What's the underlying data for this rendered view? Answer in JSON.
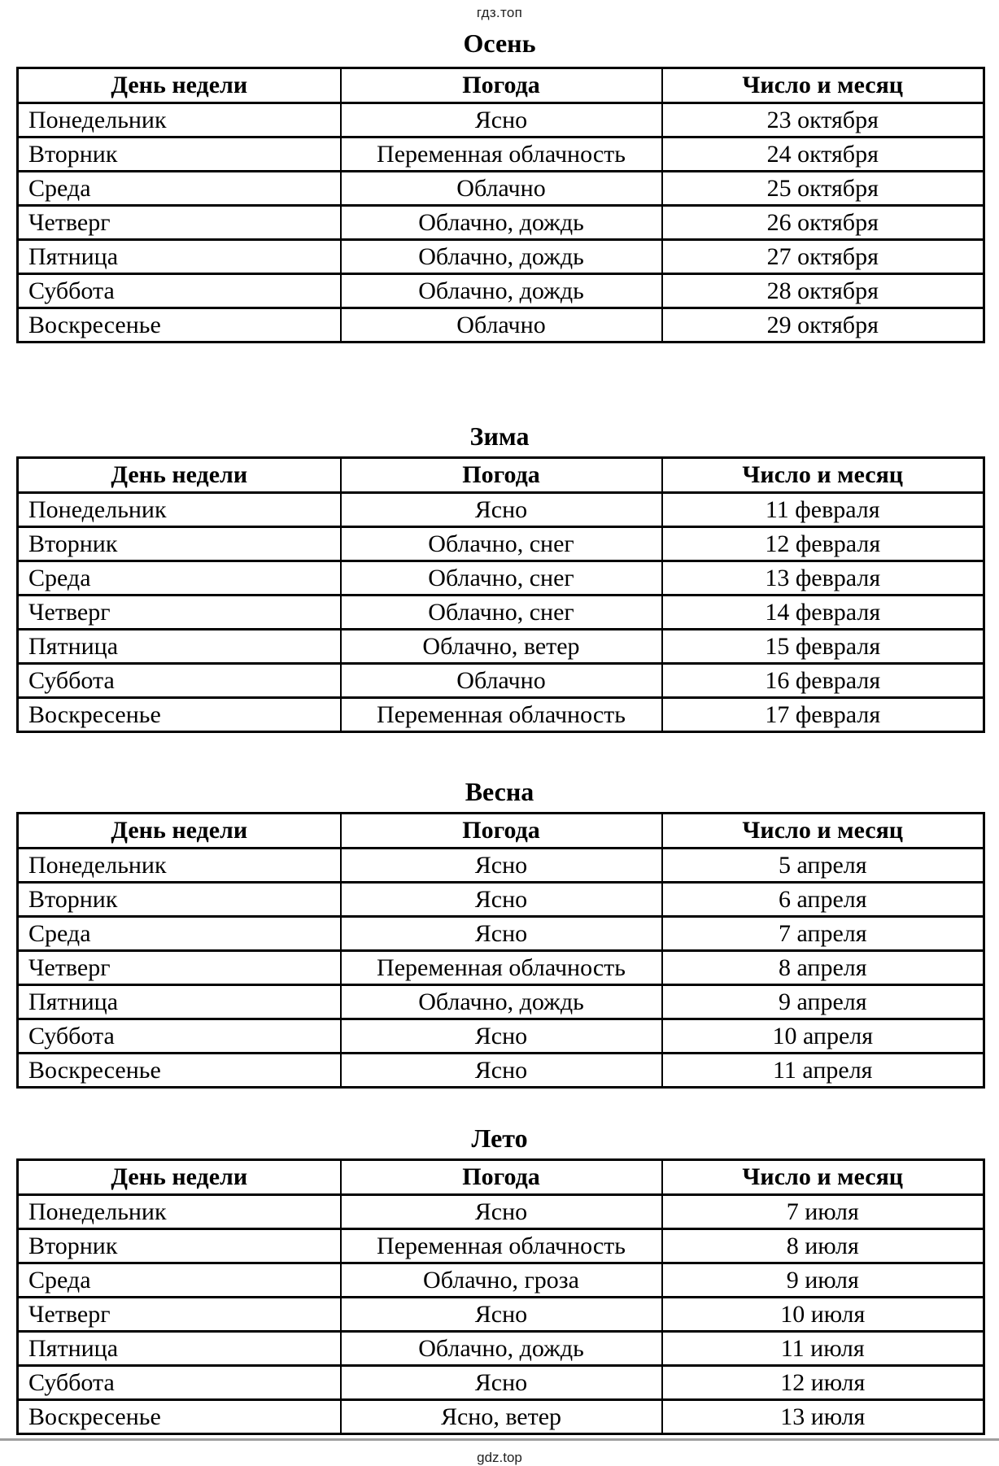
{
  "page": {
    "header_text": "гдз.топ",
    "footer_text": "gdz.top"
  },
  "colors": {
    "text": "#000000",
    "meta_text": "#222222",
    "table_border": "#000000",
    "divider": "#9e9e9e",
    "background": "#ffffff"
  },
  "columns": [
    "День недели",
    "Погода",
    "Число и месяц"
  ],
  "tables": [
    {
      "title": "Осень",
      "rows": [
        [
          "Понедельник",
          "Ясно",
          "23 октября"
        ],
        [
          "Вторник",
          "Переменная облачность",
          "24 октября"
        ],
        [
          "Среда",
          "Облачно",
          "25 октября"
        ],
        [
          "Четверг",
          "Облачно, дождь",
          "26 октября"
        ],
        [
          "Пятница",
          "Облачно, дождь",
          "27 октября"
        ],
        [
          "Суббота",
          "Облачно, дождь",
          "28 октября"
        ],
        [
          "Воскресенье",
          "Облачно",
          "29 октября"
        ]
      ]
    },
    {
      "title": "Зима",
      "rows": [
        [
          "Понедельник",
          "Ясно",
          "11 февраля"
        ],
        [
          "Вторник",
          "Облачно, снег",
          "12 февраля"
        ],
        [
          "Среда",
          "Облачно, снег",
          "13 февраля"
        ],
        [
          "Четверг",
          "Облачно, снег",
          "14 февраля"
        ],
        [
          "Пятница",
          "Облачно, ветер",
          "15 февраля"
        ],
        [
          "Суббота",
          "Облачно",
          "16 февраля"
        ],
        [
          "Воскресенье",
          "Переменная облачность",
          "17 февраля"
        ]
      ]
    },
    {
      "title": "Весна",
      "rows": [
        [
          "Понедельник",
          "Ясно",
          "5 апреля"
        ],
        [
          "Вторник",
          "Ясно",
          "6 апреля"
        ],
        [
          "Среда",
          "Ясно",
          "7 апреля"
        ],
        [
          "Четверг",
          "Переменная облачность",
          "8 апреля"
        ],
        [
          "Пятница",
          "Облачно, дождь",
          "9 апреля"
        ],
        [
          "Суббота",
          "Ясно",
          "10 апреля"
        ],
        [
          "Воскресенье",
          "Ясно",
          "11 апреля"
        ]
      ]
    },
    {
      "title": "Лето",
      "rows": [
        [
          "Понедельник",
          "Ясно",
          "7 июля"
        ],
        [
          "Вторник",
          "Переменная облачность",
          "8 июля"
        ],
        [
          "Среда",
          "Облачно, гроза",
          "9 июля"
        ],
        [
          "Четверг",
          "Ясно",
          "10 июля"
        ],
        [
          "Пятница",
          "Облачно, дождь",
          "11 июля"
        ],
        [
          "Суббота",
          "Ясно",
          "12 июля"
        ],
        [
          "Воскресенье",
          "Ясно, ветер",
          "13 июля"
        ]
      ]
    }
  ]
}
